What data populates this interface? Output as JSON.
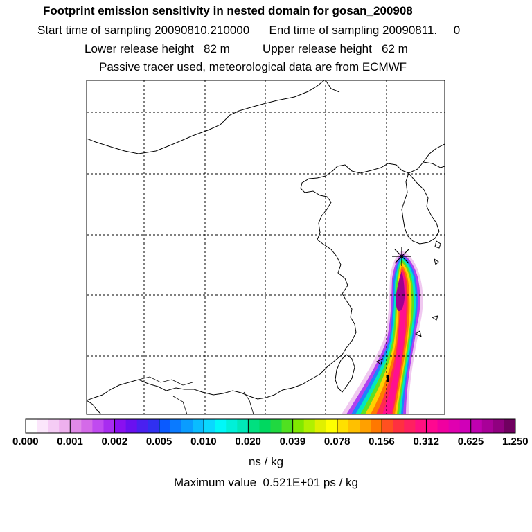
{
  "header": {
    "title": "Footprint emission sensitivity in nested domain for gosan_200908",
    "sampling_line": "Start time of sampling 20090810.210000      End time of sampling 20090811.     0",
    "release_line": "Lower release height   82 m          Upper release height   62 m",
    "tracer_line": "Passive tracer used, meteorological data are from ECMWF"
  },
  "colorbar": {
    "ticks": [
      "0.000",
      "0.001",
      "0.002",
      "0.005",
      "0.010",
      "0.020",
      "0.039",
      "0.078",
      "0.156",
      "0.312",
      "0.625",
      "1.250"
    ],
    "colors": [
      "#ffffff",
      "#fbe6fb",
      "#f5ccf5",
      "#eeb0ee",
      "#e08ae8",
      "#d46ae8",
      "#c04af0",
      "#a82cf0",
      "#8a10f0",
      "#6a10f0",
      "#4a20f0",
      "#3030f0",
      "#0a5aff",
      "#0a7aff",
      "#0a9cff",
      "#0abcff",
      "#0ad8ff",
      "#00f8f8",
      "#00f0d8",
      "#00e8b8",
      "#00e080",
      "#00d860",
      "#20d840",
      "#50e020",
      "#80e800",
      "#b0f000",
      "#e0f000",
      "#ffff00",
      "#ffe000",
      "#ffc000",
      "#ffa000",
      "#ff7800",
      "#ff5020",
      "#ff3040",
      "#ff2060",
      "#ff1080",
      "#ff0890",
      "#f000a0",
      "#e000b0",
      "#d000b8",
      "#c000b0",
      "#a80098",
      "#900080",
      "#700060"
    ],
    "unit": "ns / kg"
  },
  "footer": {
    "max_value": "Maximum value  0.521E+01 ps / kg"
  },
  "map": {
    "receptor": "gosan",
    "gridlines": "dashed"
  }
}
